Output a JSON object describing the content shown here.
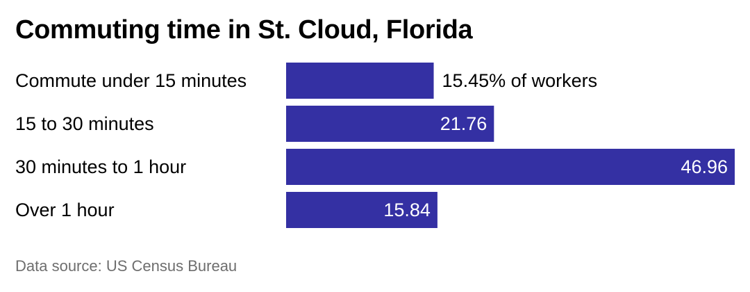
{
  "title": "Commuting time in St. Cloud, Florida",
  "source": "Data source: US Census Bureau",
  "bar_color": "#3430a3",
  "chart_data": {
    "type": "bar",
    "orientation": "horizontal",
    "title": "Commuting time in St. Cloud, Florida",
    "categories": [
      "Commute under 15 minutes",
      "15 to 30 minutes",
      "30 minutes to 1 hour",
      "Over 1 hour"
    ],
    "values": [
      15.45,
      21.76,
      46.96,
      15.84
    ],
    "value_labels": [
      "15.45% of workers",
      "21.76",
      "46.96",
      "15.84"
    ],
    "unit": "% of workers",
    "xlim": [
      0,
      46.96
    ],
    "grid": false,
    "legend": "none"
  }
}
